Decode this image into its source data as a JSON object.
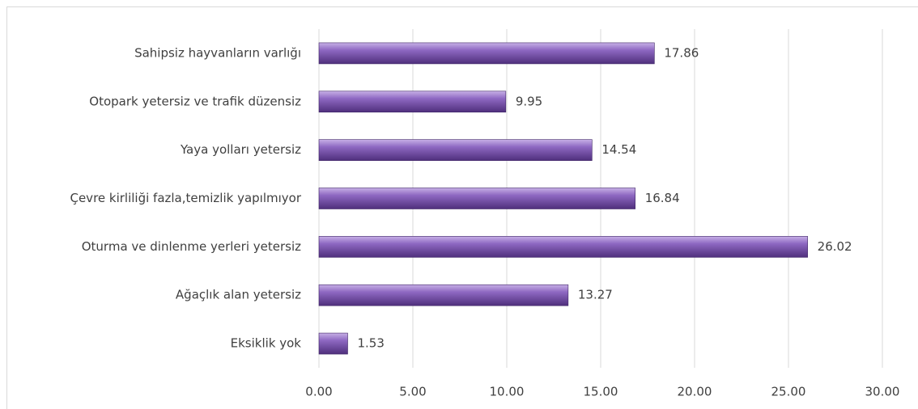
{
  "chart_data": {
    "type": "bar",
    "orientation": "horizontal",
    "categories": [
      "Sahipsiz hayvanların varlığı",
      "Otopark yetersiz ve trafik düzensiz",
      "Yaya yolları yetersiz",
      "Çevre kirliliği fazla,temizlik yapılmıyor",
      "Oturma ve dinlenme yerleri yetersiz",
      "Ağaçlık alan yetersiz",
      "Eksiklik yok"
    ],
    "values": [
      17.86,
      9.95,
      14.54,
      16.84,
      26.02,
      13.27,
      1.53
    ],
    "color": "#7e57b0",
    "xlim": [
      0,
      30
    ],
    "xticks": [
      {
        "value": 0,
        "label": "0.00"
      },
      {
        "value": 5,
        "label": "5.00"
      },
      {
        "value": 10,
        "label": "10.00"
      },
      {
        "value": 15,
        "label": "15.00"
      },
      {
        "value": 20,
        "label": "20.00"
      },
      {
        "value": 25,
        "label": "25.00"
      },
      {
        "value": 30,
        "label": "30.00"
      }
    ],
    "grid": true
  }
}
